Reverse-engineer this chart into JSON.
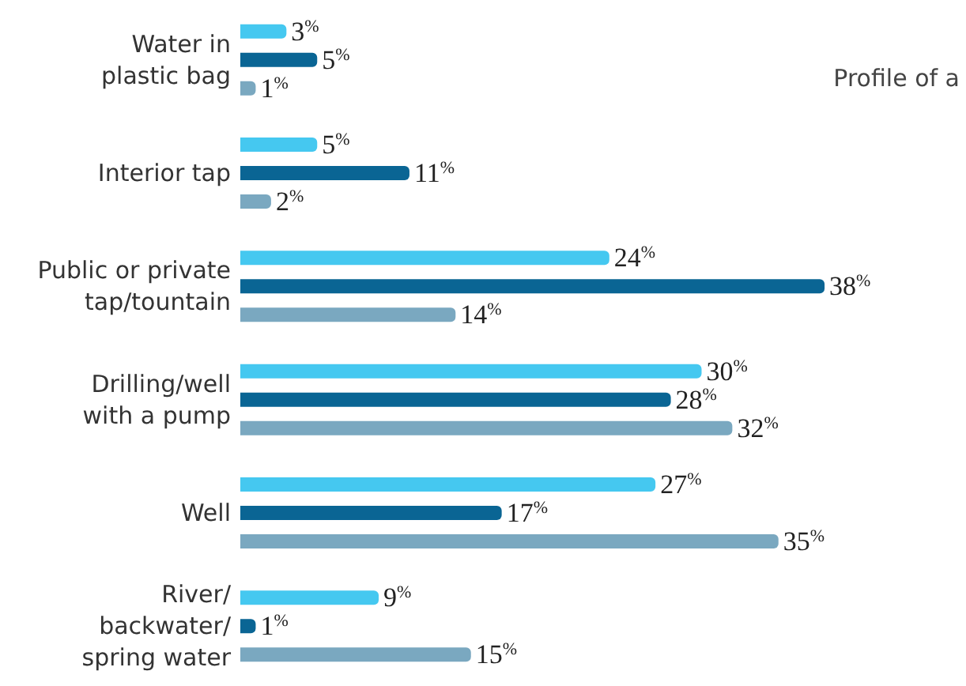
{
  "chart_data": {
    "type": "bar",
    "orientation": "horizontal",
    "categories": [
      "Water in\nplastic bag",
      "Interior tap",
      "Public or private\ntap/tountain",
      "Drilling/well\nwith a pump",
      "Well",
      "River/\nbackwater/\nspring water"
    ],
    "series": [
      {
        "color": "#45c8f0",
        "values": [
          3,
          5,
          24,
          30,
          27,
          9
        ],
        "value_labels": [
          "3%",
          "5%",
          "24%",
          "30%",
          "27%",
          "9%"
        ]
      },
      {
        "color": "#0a6594",
        "values": [
          5,
          11,
          38,
          28,
          17,
          1
        ],
        "value_labels": [
          "5%",
          "11%",
          "38%",
          "28%",
          "17%",
          "1%"
        ]
      },
      {
        "color": "#7aa8c0",
        "values": [
          1,
          2,
          14,
          32,
          35,
          15
        ],
        "value_labels": [
          "1%",
          "2%",
          "14%",
          "32%",
          "35%",
          "15%"
        ]
      }
    ],
    "annotations": [
      "Profile of a"
    ]
  }
}
